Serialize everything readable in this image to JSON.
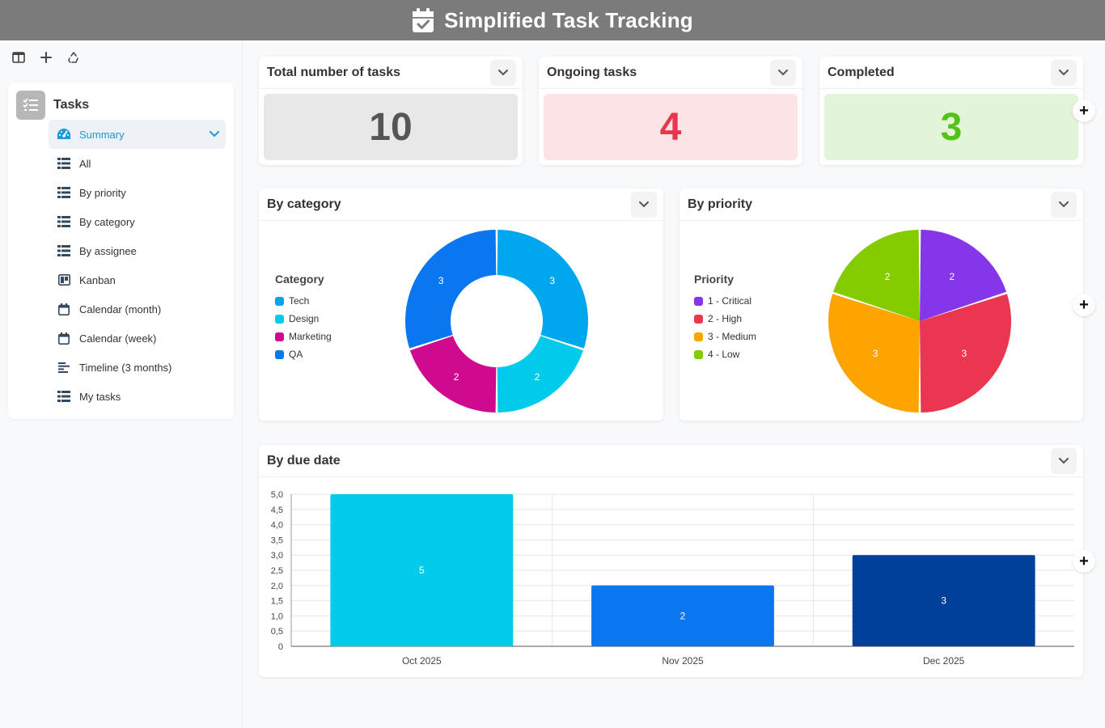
{
  "header": {
    "title": "Simplified Task Tracking",
    "icon": "calendar-check-icon"
  },
  "toolbar": [
    {
      "name": "toggle-sidebar-button",
      "icon": "columns-icon"
    },
    {
      "name": "add-page-button",
      "icon": "plus-icon"
    },
    {
      "name": "recycle-button",
      "icon": "recycle-icon"
    }
  ],
  "nav": {
    "app_label": "Tasks",
    "items": [
      {
        "label": "Summary",
        "icon": "dashboard-icon",
        "active": true
      },
      {
        "label": "All",
        "icon": "table-icon"
      },
      {
        "label": "By priority",
        "icon": "table-icon"
      },
      {
        "label": "By category",
        "icon": "table-icon"
      },
      {
        "label": "By assignee",
        "icon": "table-icon"
      },
      {
        "label": "Kanban",
        "icon": "kanban-icon"
      },
      {
        "label": "Calendar (month)",
        "icon": "calendar-icon"
      },
      {
        "label": "Calendar (week)",
        "icon": "calendar-icon"
      },
      {
        "label": "Timeline (3 months)",
        "icon": "timeline-icon"
      },
      {
        "label": "My tasks",
        "icon": "table-icon"
      }
    ]
  },
  "kpis": [
    {
      "title": "Total number of tasks",
      "value": "10",
      "bg": "#e8e8e8",
      "color": "#555555"
    },
    {
      "title": "Ongoing tasks",
      "value": "4",
      "bg": "#fbe3e6",
      "color": "#e8364f"
    },
    {
      "title": "Completed",
      "value": "3",
      "bg": "#e3f5d9",
      "color": "#55c21b"
    }
  ],
  "category_chart": {
    "title": "By category"
  },
  "priority_chart": {
    "title": "By priority"
  },
  "due_chart": {
    "title": "By due date"
  },
  "add_button_label": "+",
  "chart_data": [
    {
      "type": "pie",
      "variant": "donut",
      "legend_title": "Category",
      "categories": [
        "Tech",
        "Design",
        "Marketing",
        "QA"
      ],
      "values": [
        3,
        2,
        2,
        3
      ],
      "colors": [
        "#00a7ee",
        "#00cbea",
        "#cf0a8f",
        "#0a77f1"
      ],
      "legend_placement": "left"
    },
    {
      "type": "pie",
      "legend_title": "Priority",
      "categories": [
        "1 - Critical",
        "2 - High",
        "3 - Medium",
        "4 - Low"
      ],
      "values": [
        2,
        3,
        3,
        2
      ],
      "colors": [
        "#8536e9",
        "#ea3651",
        "#fea400",
        "#84cb00"
      ],
      "legend_placement": "left"
    },
    {
      "type": "bar",
      "categories": [
        "Oct 2025",
        "Nov 2025",
        "Dec 2025"
      ],
      "values": [
        5,
        2,
        3
      ],
      "colors": [
        "#00cbea",
        "#0a77f1",
        "#00409b"
      ],
      "ylim": [
        0,
        5
      ],
      "yticks": [
        "0",
        "0,5",
        "1,0",
        "1,5",
        "2,0",
        "2,5",
        "3,0",
        "3,5",
        "4,0",
        "4,5",
        "5,0"
      ],
      "grid": true
    }
  ]
}
